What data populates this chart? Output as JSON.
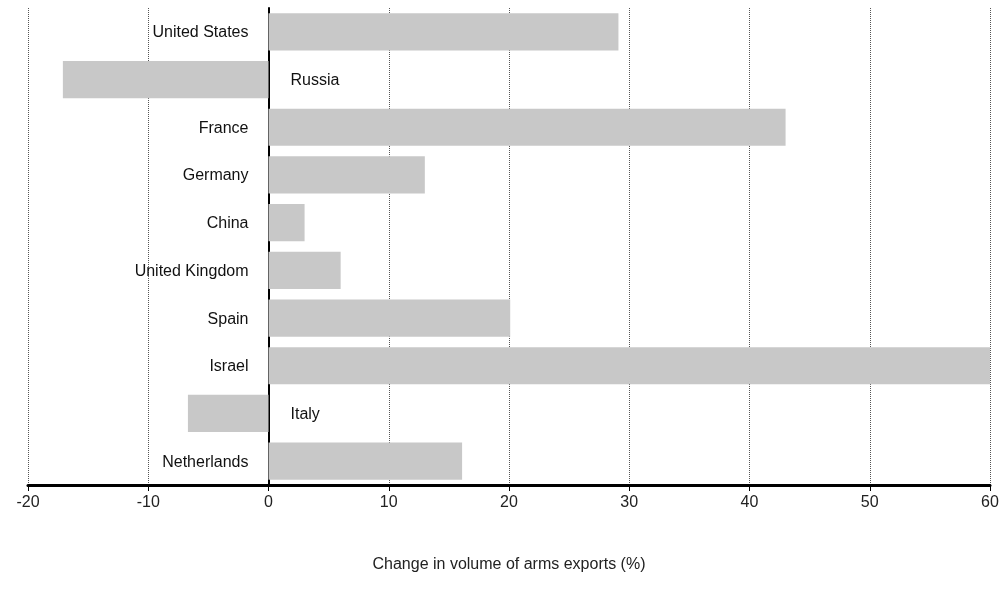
{
  "chart_data": {
    "type": "bar",
    "orientation": "horizontal",
    "xlabel": "Change in volume of arms exports (%)",
    "categories": [
      "United States",
      "Russia",
      "France",
      "Germany",
      "China",
      "United Kingdom",
      "Spain",
      "Israel",
      "Italy",
      "Netherlands"
    ],
    "values": [
      29.1,
      -17.1,
      43,
      13,
      3,
      6,
      20.1,
      60,
      -6.7,
      16.1
    ],
    "color": "#c8c8c8",
    "xlim": [
      -20,
      60
    ],
    "xticks": [
      -20,
      -10,
      0,
      10,
      20,
      30,
      40,
      50,
      60
    ],
    "grid": "x"
  }
}
